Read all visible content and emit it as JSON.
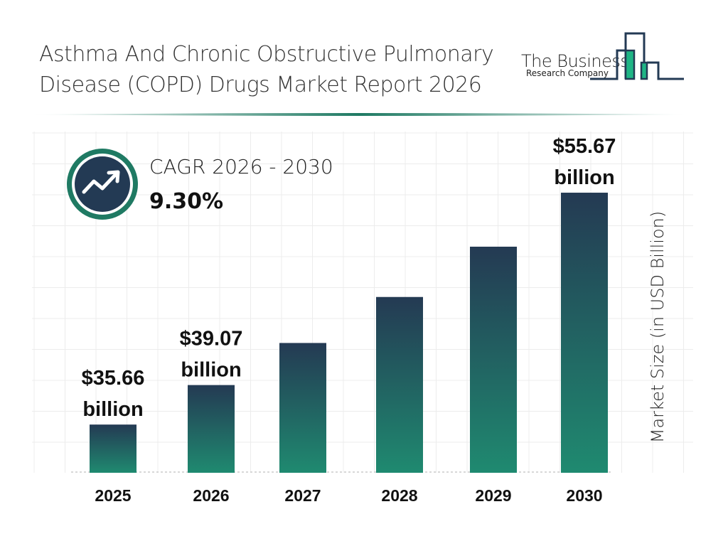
{
  "header": {
    "title_line1": "Asthma And Chronic Obstructive Pulmonary",
    "title_line2": "Disease (COPD) Drugs Market Report 2026"
  },
  "logo": {
    "line1": "The Business",
    "line2": "Research Company"
  },
  "cagr": {
    "label": "CAGR 2026 - 2030",
    "value": "9.30%",
    "icon": "trending-up-icon"
  },
  "colors": {
    "bar_top": "#243a53",
    "bar_bottom": "#1f8a70",
    "accent": "#1f7a63",
    "dark": "#233a54"
  },
  "chart_data": {
    "type": "bar",
    "categories": [
      "2025",
      "2026",
      "2027",
      "2028",
      "2029",
      "2030"
    ],
    "values": [
      35.66,
      39.07,
      42.7,
      46.67,
      51.01,
      55.67
    ],
    "data_labels": [
      {
        "index": 0,
        "line1": "$35.66",
        "line2": "billion"
      },
      {
        "index": 1,
        "line1": "$39.07",
        "line2": "billion"
      },
      {
        "index": 5,
        "line1": "$55.67",
        "line2": "billion"
      }
    ],
    "ylabel": "Market Size (in USD Billion)",
    "grid": true
  }
}
